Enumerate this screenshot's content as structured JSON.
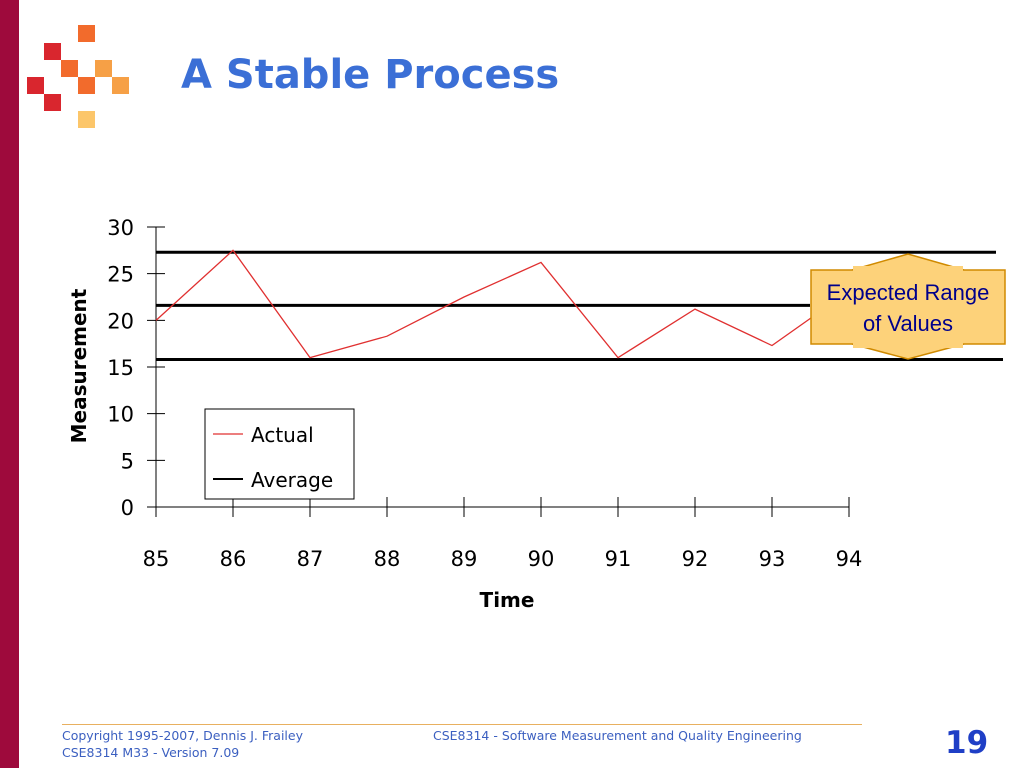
{
  "slide": {
    "title": "A Stable Process",
    "colors": {
      "left_bar": "#9e0a3c",
      "title": "#3b6fd6",
      "actual_line": "#e03030",
      "average_line": "#000000",
      "annotation_fill": "#fdd27a",
      "annotation_border": "#d08a00"
    }
  },
  "chart_data": {
    "type": "line",
    "title": "",
    "xlabel": "Time",
    "ylabel": "Measurement",
    "categories": [
      "85",
      "86",
      "87",
      "88",
      "89",
      "90",
      "91",
      "92",
      "93",
      "94"
    ],
    "y_ticks": [
      "0",
      "5",
      "10",
      "15",
      "20",
      "25",
      "30"
    ],
    "ylim": [
      0,
      30
    ],
    "series": [
      {
        "name": "Actual",
        "x": [
          85,
          86,
          87,
          88,
          89,
          90,
          91,
          92,
          93,
          93.6
        ],
        "values": [
          20,
          27.5,
          16,
          18.3,
          22.5,
          26.2,
          16,
          21.2,
          17.3,
          20.8
        ]
      }
    ],
    "reference_lines": [
      {
        "name": "Average",
        "value": 21.6,
        "label": "Average"
      },
      {
        "name": "upper_limit",
        "value": 27.3
      },
      {
        "name": "lower_limit",
        "value": 15.8
      }
    ],
    "legend": {
      "position": "bottom-left",
      "items": [
        "Actual",
        "Average"
      ]
    },
    "annotation": {
      "text_line1": "Expected Range",
      "text_line2": "of Values"
    },
    "grid": false
  },
  "footer": {
    "copyright": "Copyright 1995-2007, Dennis J. Frailey",
    "version": "CSE8314 M33 - Version 7.09",
    "course": "CSE8314 - Software Measurement and Quality Engineering",
    "page_number": "19"
  }
}
